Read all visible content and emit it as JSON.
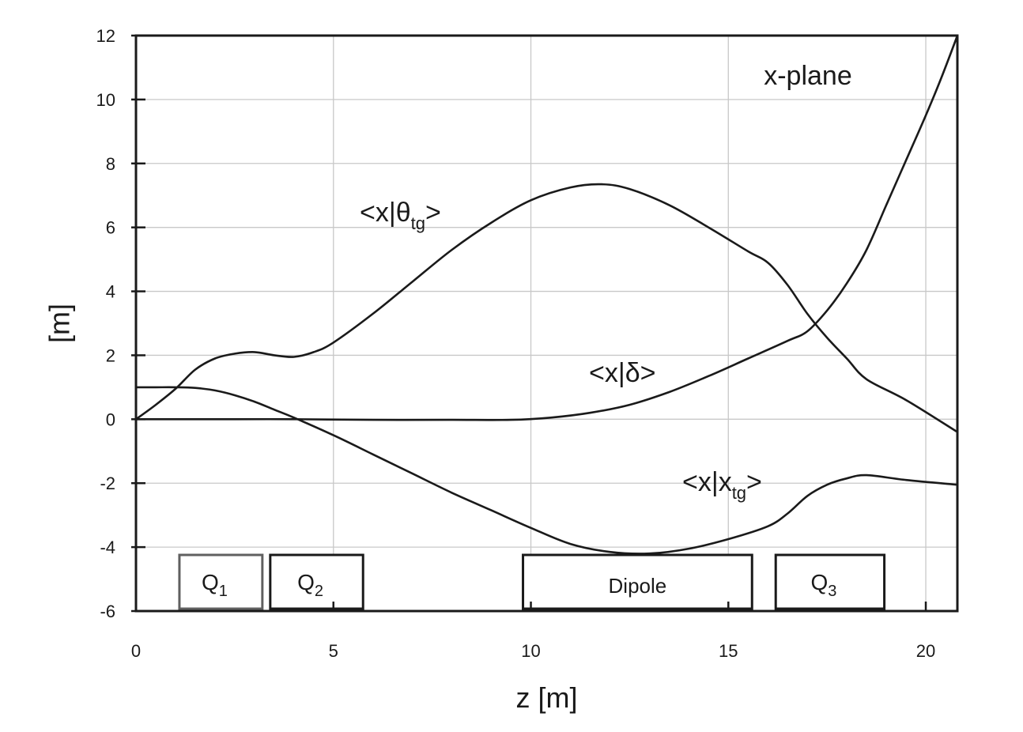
{
  "chart_data": {
    "type": "line",
    "xlabel": "z [m]",
    "ylabel": "[m]",
    "xlim": [
      0,
      20.8
    ],
    "ylim": [
      -6,
      12
    ],
    "x_ticks": [
      0,
      5,
      10,
      15,
      20
    ],
    "y_ticks": [
      -6,
      -4,
      -2,
      0,
      2,
      4,
      6,
      8,
      10,
      12
    ],
    "grid": true,
    "plane_label": "x-plane",
    "series": [
      {
        "name": "<x|θtg>",
        "label_main": "<x|θ",
        "label_sub": "tg",
        "label_end": ">",
        "x": [
          0,
          0.5,
          1.0,
          1.5,
          2.0,
          2.5,
          3.0,
          3.5,
          4.0,
          4.5,
          5.0,
          6.0,
          7.0,
          8.0,
          9.0,
          10.0,
          11.0,
          11.8,
          12.5,
          13.5,
          14.5,
          15.5,
          16.0,
          16.5,
          17.0,
          17.5,
          18.0,
          18.5,
          19.5,
          20.8
        ],
        "y": [
          0,
          0.45,
          0.95,
          1.55,
          1.9,
          2.05,
          2.1,
          2.0,
          1.95,
          2.1,
          2.4,
          3.3,
          4.3,
          5.3,
          6.15,
          6.85,
          7.25,
          7.35,
          7.2,
          6.7,
          6.0,
          5.25,
          4.9,
          4.2,
          3.3,
          2.55,
          1.9,
          1.25,
          0.6,
          -0.4
        ]
      },
      {
        "name": "<x|δ>",
        "label_main": "<x|δ>",
        "x": [
          0,
          2,
          4,
          6,
          8,
          9.5,
          10.5,
          11.5,
          12.5,
          13.5,
          14.5,
          15.5,
          16.5,
          17.0,
          17.5,
          18.0,
          18.5,
          19.0,
          19.5,
          20.0,
          20.4,
          20.8
        ],
        "y": [
          0,
          0,
          0,
          -0.02,
          -0.02,
          -0.02,
          0.05,
          0.2,
          0.45,
          0.85,
          1.35,
          1.9,
          2.45,
          2.75,
          3.4,
          4.25,
          5.3,
          6.7,
          8.1,
          9.5,
          10.7,
          12.0
        ]
      },
      {
        "name": "<x|xtg>",
        "label_main": "<x|x",
        "label_sub": "tg",
        "label_end": ">",
        "x": [
          0,
          0.5,
          1.0,
          1.5,
          2.0,
          2.5,
          3.0,
          3.5,
          4.0,
          5.0,
          6.0,
          7.0,
          8.0,
          9.0,
          10.0,
          11.0,
          12.0,
          13.0,
          14.0,
          15.0,
          16.0,
          16.5,
          17.0,
          17.5,
          18.0,
          18.5,
          19.5,
          20.8
        ],
        "y": [
          1.0,
          1.0,
          1.0,
          0.98,
          0.9,
          0.75,
          0.55,
          0.3,
          0.05,
          -0.5,
          -1.1,
          -1.7,
          -2.3,
          -2.85,
          -3.4,
          -3.9,
          -4.15,
          -4.2,
          -4.05,
          -3.75,
          -3.35,
          -2.95,
          -2.4,
          -2.05,
          -1.85,
          -1.75,
          -1.9,
          -2.05
        ]
      }
    ],
    "magnets": [
      {
        "name": "Q1",
        "main": "Q",
        "sub": "1",
        "z_start": 1.1,
        "z_end": 3.2,
        "color": "#606060"
      },
      {
        "name": "Q2",
        "main": "Q",
        "sub": "2",
        "z_start": 3.4,
        "z_end": 5.75,
        "color": "#1a1a1a"
      },
      {
        "name": "Dipole",
        "main": "Dipole",
        "sub": "",
        "z_start": 9.8,
        "z_end": 15.6,
        "color": "#1a1a1a"
      },
      {
        "name": "Q3",
        "main": "Q",
        "sub": "3",
        "z_start": 16.2,
        "z_end": 18.95,
        "color": "#1a1a1a"
      }
    ]
  }
}
